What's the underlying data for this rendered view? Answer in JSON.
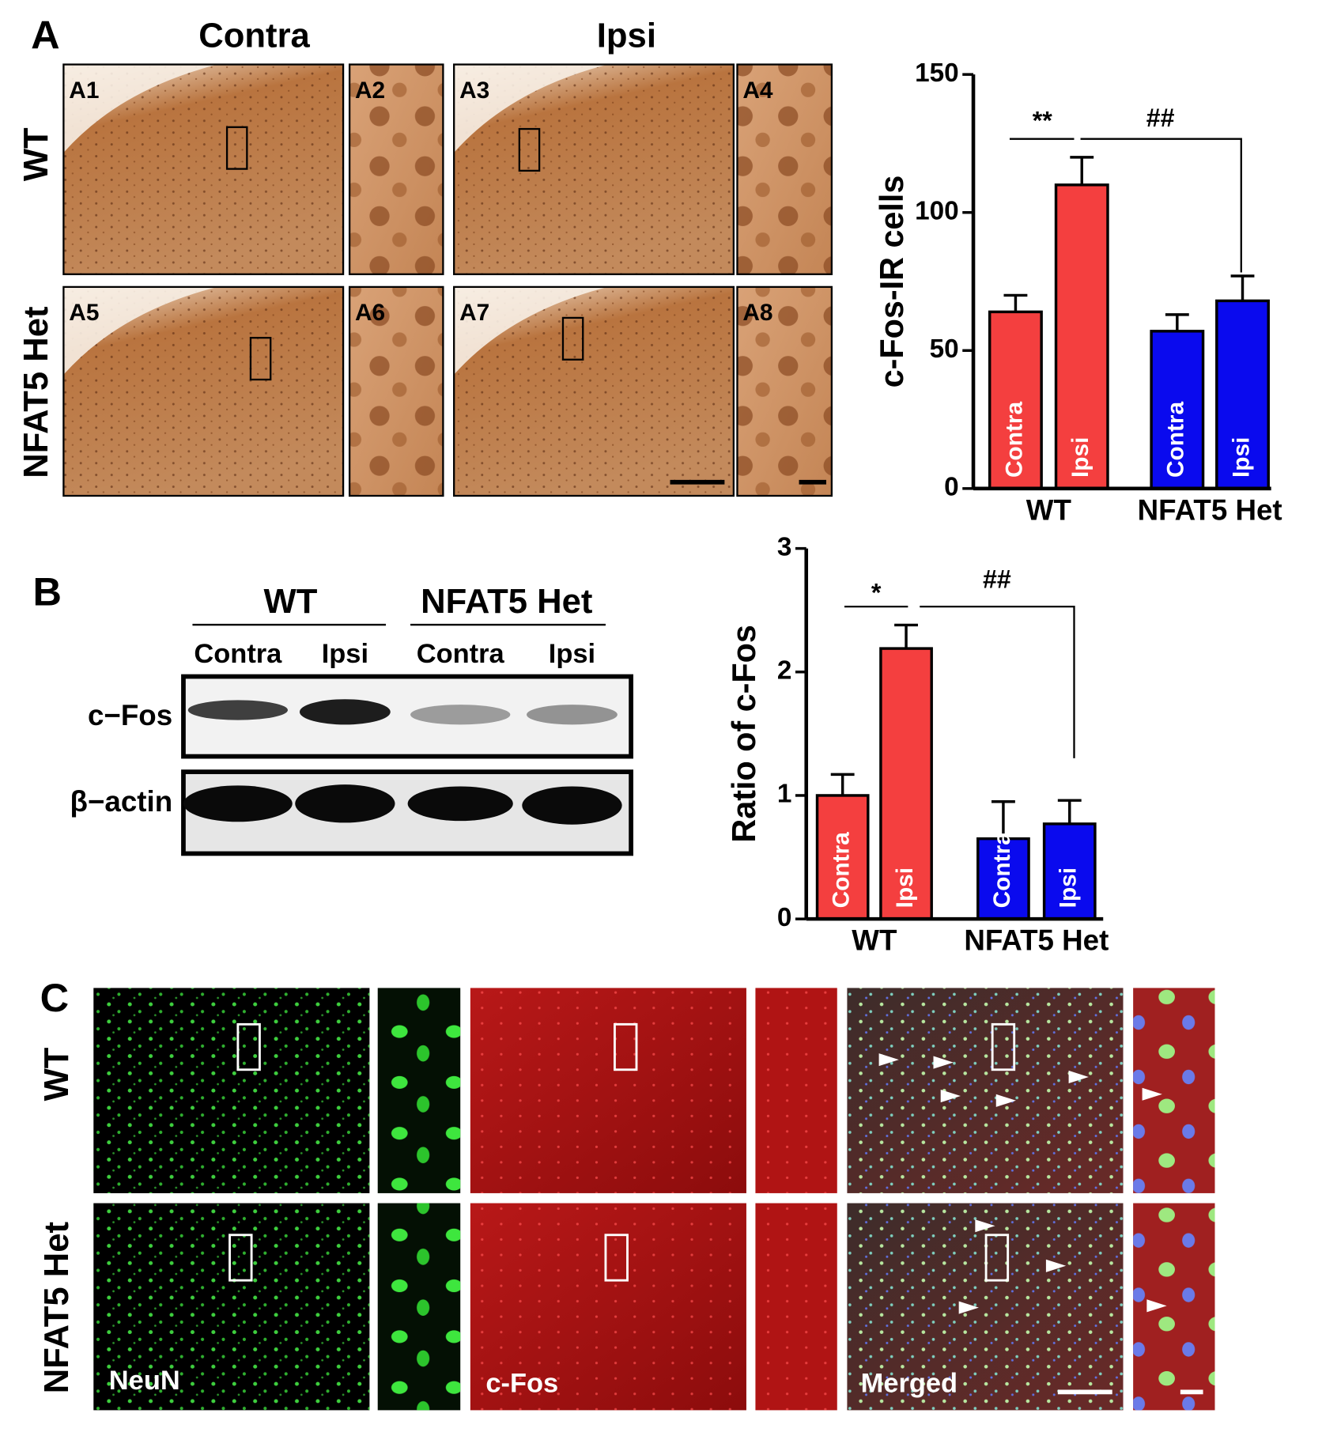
{
  "panels": {
    "A": {
      "label": "A",
      "columns": [
        "Contra",
        "Ipsi"
      ],
      "rows": [
        "WT",
        "NFAT5 Het"
      ],
      "subpanels": [
        "A1",
        "A2",
        "A3",
        "A4",
        "A5",
        "A6",
        "A7",
        "A8"
      ]
    },
    "B": {
      "label": "B",
      "groups": [
        "WT",
        "NFAT5 Het"
      ],
      "lanes": [
        "Contra",
        "Ipsi",
        "Contra",
        "Ipsi"
      ],
      "blots": [
        "c−Fos",
        "β−actin"
      ]
    },
    "C": {
      "label": "C",
      "rows": [
        "WT",
        "NFAT5 Het"
      ],
      "channels": [
        "NeuN",
        "c-Fos",
        "Merged"
      ]
    }
  },
  "chart_data": [
    {
      "type": "bar",
      "ylabel": "c-Fos-IR cells",
      "categories": [
        "WT",
        "NFAT5 Het"
      ],
      "colors": [
        "#f43f3f",
        "#0a0aee"
      ],
      "series": [
        {
          "name": "Contra",
          "values": [
            64,
            57
          ],
          "errors": [
            6,
            6
          ]
        },
        {
          "name": "Ipsi",
          "values": [
            110,
            68
          ],
          "errors": [
            10,
            9
          ]
        }
      ],
      "ylim": [
        0,
        150
      ],
      "yticks": [
        0,
        50,
        100,
        150
      ],
      "annotations": [
        "**",
        "##"
      ]
    },
    {
      "type": "bar",
      "ylabel": "Ratio of c-Fos",
      "categories": [
        "WT",
        "NFAT5 Het"
      ],
      "colors": [
        "#f43f3f",
        "#0a0aee"
      ],
      "series": [
        {
          "name": "Contra",
          "values": [
            1.0,
            0.65
          ],
          "errors": [
            0.17,
            0.3
          ]
        },
        {
          "name": "Ipsi",
          "values": [
            2.19,
            0.77
          ],
          "errors": [
            0.19,
            0.19
          ]
        }
      ],
      "ylim": [
        0,
        3
      ],
      "yticks": [
        0,
        1,
        2,
        3
      ],
      "annotations": [
        "*",
        "##"
      ]
    }
  ]
}
